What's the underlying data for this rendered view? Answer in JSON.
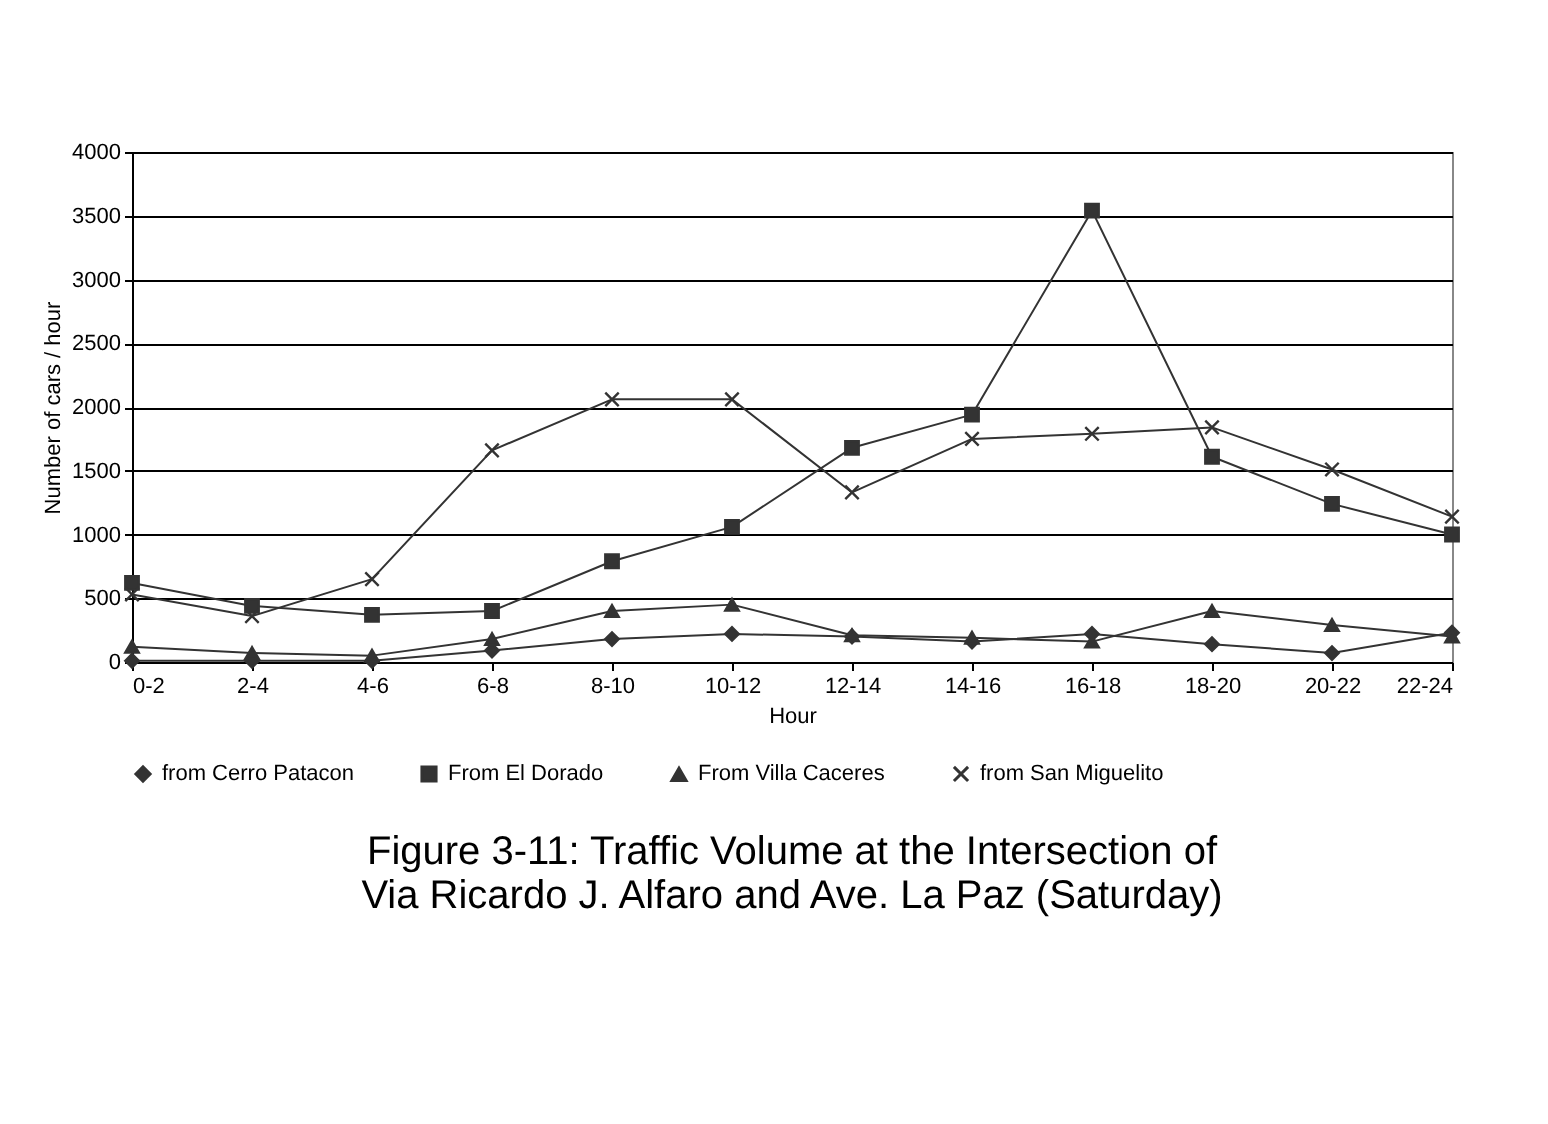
{
  "chart_data": {
    "type": "line",
    "title": "Figure 3-11: Traffic Volume at the Intersection of Via Ricardo J. Alfaro and Ave. La Paz (Saturday)",
    "xlabel": "Hour",
    "ylabel": "Number of cars / hour",
    "categories": [
      "0-2",
      "2-4",
      "4-6",
      "6-8",
      "8-10",
      "10-12",
      "12-14",
      "14-16",
      "16-18",
      "18-20",
      "20-22",
      "22-24"
    ],
    "series": [
      {
        "name": "from Cerro Patacon",
        "color": "#333333",
        "marker": "diamond",
        "values": [
          10,
          10,
          10,
          90,
          180,
          220,
          200,
          160,
          220,
          140,
          70,
          230
        ]
      },
      {
        "name": "From El Dorado",
        "color": "#333333",
        "marker": "square",
        "values": [
          620,
          440,
          370,
          400,
          790,
          1060,
          1680,
          1940,
          3540,
          1610,
          1240,
          1000
        ]
      },
      {
        "name": "From Villa Caceres",
        "color": "#333333",
        "marker": "triangle",
        "values": [
          120,
          70,
          50,
          180,
          400,
          450,
          210,
          190,
          160,
          400,
          290,
          200
        ]
      },
      {
        "name": "from San Miguelito",
        "color": "#333333",
        "marker": "cross",
        "values": [
          530,
          360,
          650,
          1660,
          2060,
          2060,
          1330,
          1750,
          1790,
          1840,
          1510,
          1140
        ]
      }
    ],
    "ylim": [
      0,
      4000
    ],
    "yticks": [
      0,
      500,
      1000,
      1500,
      2000,
      2500,
      3000,
      3500,
      4000
    ],
    "grid": "y",
    "legend": "bottom",
    "line_style": "solid"
  }
}
